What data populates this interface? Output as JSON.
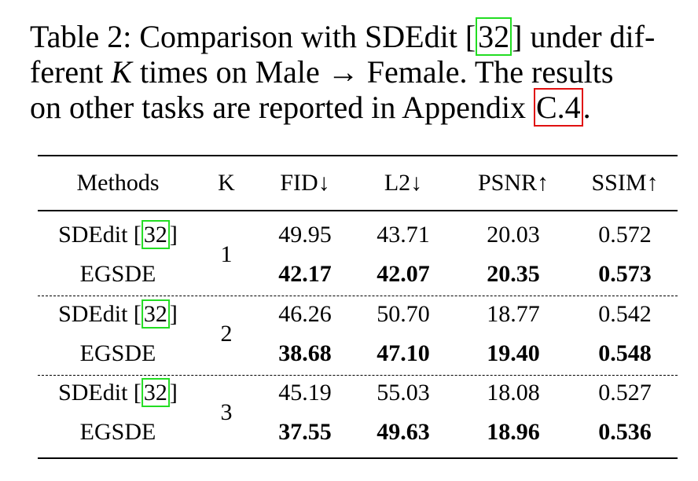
{
  "caption": {
    "line1_pre": "Table 2: Comparison with SDEdit [",
    "ref": "32",
    "line1_post": "] under dif-",
    "line2": "ferent ",
    "line2_var": "K",
    "line2_post": " times on Male → Female. The results",
    "line3_pre": "on other tasks are reported in Appendix ",
    "appendix_ref": "C.4",
    "line3_post": "."
  },
  "table": {
    "headers": [
      "Methods",
      "K",
      "FID↓",
      "L2↓",
      "PSNR↑",
      "SSIM↑"
    ],
    "groups": [
      {
        "k": "1",
        "rows": [
          {
            "method": "SDEdit [",
            "ref": "32",
            "method_post": "]",
            "values": [
              "49.95",
              "43.71",
              "20.03",
              "0.572"
            ],
            "bold": false
          },
          {
            "method": "EGSDE",
            "values": [
              "42.17",
              "42.07",
              "20.35",
              "0.573"
            ],
            "bold": true
          }
        ]
      },
      {
        "k": "2",
        "rows": [
          {
            "method": "SDEdit [",
            "ref": "32",
            "method_post": "]",
            "values": [
              "46.26",
              "50.70",
              "18.77",
              "0.542"
            ],
            "bold": false
          },
          {
            "method": "EGSDE",
            "values": [
              "38.68",
              "47.10",
              "19.40",
              "0.548"
            ],
            "bold": true
          }
        ]
      },
      {
        "k": "3",
        "rows": [
          {
            "method": "SDEdit [",
            "ref": "32",
            "method_post": "]",
            "values": [
              "45.19",
              "55.03",
              "18.08",
              "0.527"
            ],
            "bold": false
          },
          {
            "method": "EGSDE",
            "values": [
              "37.55",
              "49.63",
              "18.96",
              "0.536"
            ],
            "bold": true
          }
        ]
      }
    ]
  },
  "colors": {
    "citation_box": "#22dd22",
    "appendix_box": "#e01010"
  }
}
